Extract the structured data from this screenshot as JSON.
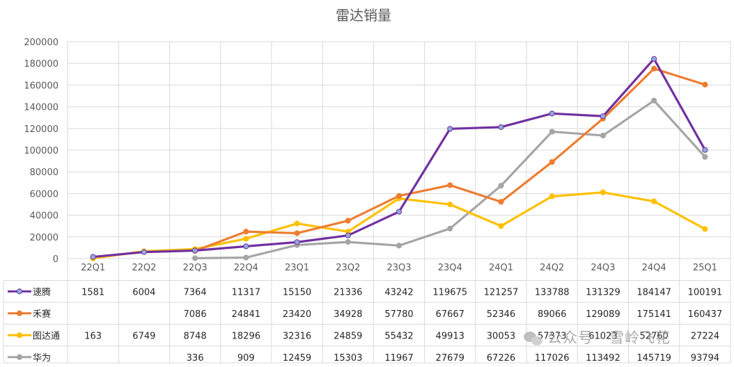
{
  "chart_data": {
    "type": "line",
    "title": "雷达销量",
    "categories": [
      "22Q1",
      "22Q2",
      "22Q3",
      "22Q4",
      "23Q1",
      "23Q2",
      "23Q3",
      "23Q4",
      "24Q1",
      "24Q2",
      "24Q3",
      "24Q4",
      "25Q1"
    ],
    "yticks": [
      "200000",
      "180000",
      "160000",
      "140000",
      "120000",
      "100000",
      "80000",
      "60000",
      "40000",
      "20000",
      "0"
    ],
    "ylim": [
      0,
      200000
    ],
    "grid": true,
    "legend": "left-table",
    "series": [
      {
        "name": "速腾",
        "color": "#7030a0",
        "marker_fill": "#8faadc",
        "values": [
          1581,
          6004,
          7364,
          11317,
          15150,
          21336,
          43242,
          119675,
          121257,
          133788,
          131329,
          184147,
          100191
        ]
      },
      {
        "name": "禾赛",
        "color": "#ed7d31",
        "marker_fill": "#ed7d31",
        "values": [
          null,
          null,
          7086,
          24841,
          23420,
          34928,
          57780,
          67667,
          52346,
          89066,
          129089,
          175141,
          160437
        ]
      },
      {
        "name": "图达通",
        "color": "#ffc000",
        "marker_fill": "#ffc000",
        "values": [
          163,
          6749,
          8748,
          18296,
          32316,
          24859,
          55432,
          49913,
          30053,
          57373,
          61023,
          52760,
          27224
        ]
      },
      {
        "name": "华为",
        "color": "#a5a5a5",
        "marker_fill": "#a5a5a5",
        "values": [
          null,
          null,
          336,
          909,
          12459,
          15303,
          11967,
          27679,
          67226,
          117026,
          113492,
          145719,
          93794
        ]
      }
    ]
  },
  "watermark": "公众号 · 雪岭飞花"
}
